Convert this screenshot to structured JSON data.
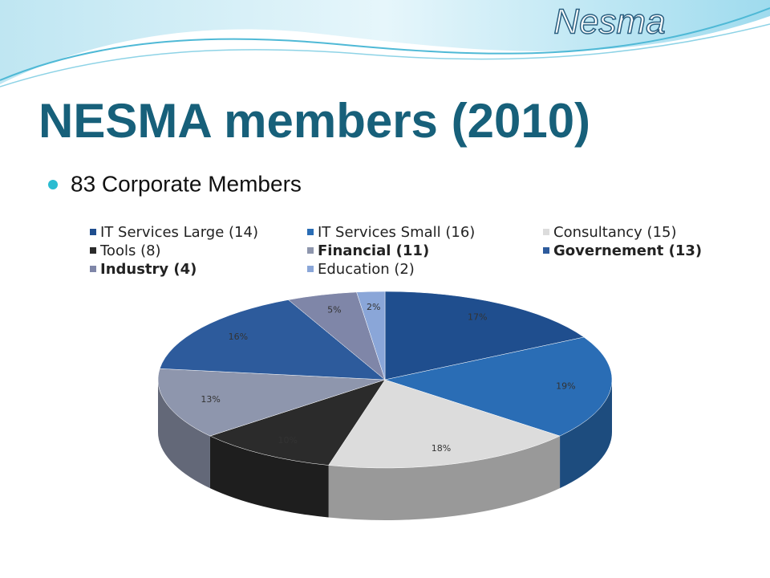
{
  "logo": "Nesma",
  "chart_data": {
    "type": "pie3d",
    "title": "NESMA members (2010)",
    "subtitle": "83 Corporate Members",
    "categories": [
      "IT Services Large (14)",
      "IT Services Small (16)",
      "Consultancy (15)",
      "Tools (8)",
      "Financial (11)",
      "Governement (13)",
      "Industry (4)",
      "Education (2)"
    ],
    "values": [
      17,
      19,
      18,
      10,
      13,
      16,
      5,
      2
    ],
    "value_labels": [
      "17%",
      "19%",
      "18%",
      "10%",
      "13%",
      "16%",
      "5%",
      "2%"
    ],
    "colors": [
      "#1f4e8e",
      "#2a6db5",
      "#dcdcdc",
      "#2b2b2b",
      "#8e96ad",
      "#2d5b9c",
      "#7f86a8",
      "#8aa6d8"
    ],
    "legend": "top"
  }
}
